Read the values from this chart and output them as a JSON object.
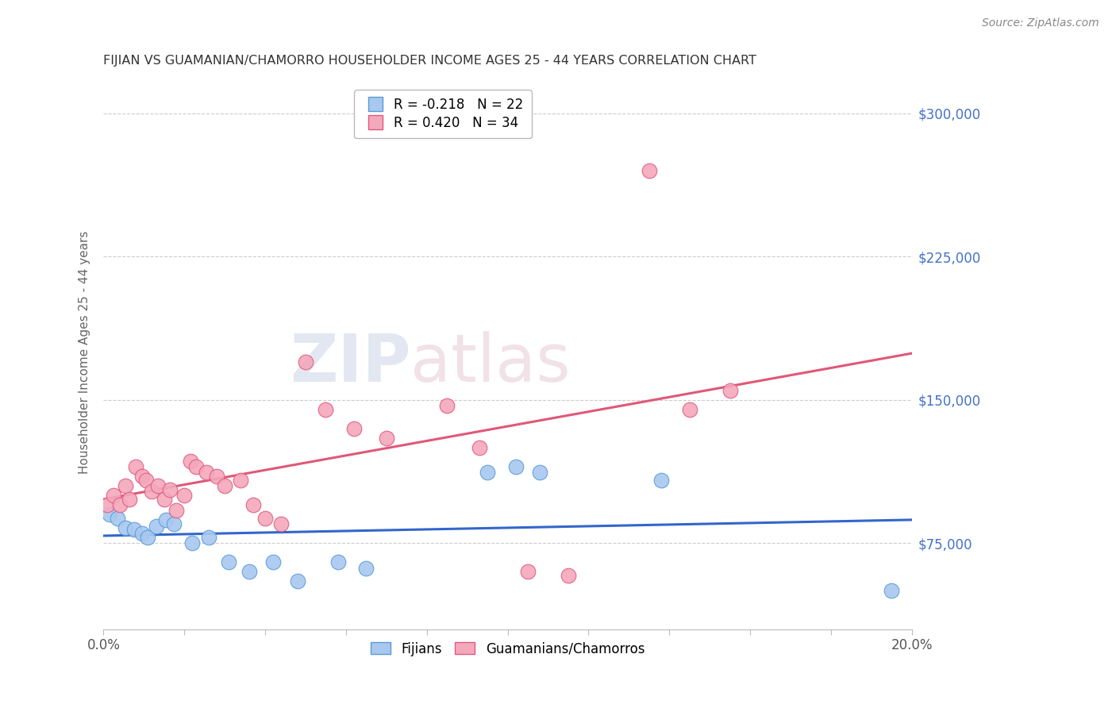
{
  "title": "FIJIAN VS GUAMANIAN/CHAMORRO HOUSEHOLDER INCOME AGES 25 - 44 YEARS CORRELATION CHART",
  "source": "Source: ZipAtlas.com",
  "ylabel": "Householder Income Ages 25 - 44 years",
  "yticks": [
    75000,
    150000,
    225000,
    300000
  ],
  "ytick_labels": [
    "$75,000",
    "$150,000",
    "$225,000",
    "$300,000"
  ],
  "ylim": [
    30000,
    320000
  ],
  "xlim": [
    0.0,
    20.0
  ],
  "fijian_color": "#A8C8F0",
  "fijian_edge": "#5B9BD5",
  "chamorro_color": "#F4A8BC",
  "chamorro_edge": "#E05A80",
  "fijian_line_color": "#3366CC",
  "chamorro_line_color": "#E05878",
  "chamorro_dash_color": "#E8A0B0",
  "fijian_R": -0.218,
  "fijian_N": 22,
  "chamorro_R": 0.42,
  "chamorro_N": 34,
  "fijian_x": [
    0.15,
    0.35,
    0.55,
    0.75,
    0.95,
    1.1,
    1.3,
    1.55,
    1.75,
    2.2,
    2.6,
    3.1,
    3.6,
    4.2,
    4.8,
    5.8,
    6.5,
    9.5,
    10.2,
    10.8,
    13.8,
    19.5
  ],
  "fijian_y": [
    90000,
    88000,
    83000,
    82000,
    80000,
    78000,
    84000,
    87000,
    85000,
    75000,
    78000,
    65000,
    60000,
    65000,
    55000,
    65000,
    62000,
    112000,
    115000,
    112000,
    108000,
    50000
  ],
  "chamorro_x": [
    0.1,
    0.25,
    0.4,
    0.55,
    0.65,
    0.8,
    0.95,
    1.05,
    1.2,
    1.35,
    1.5,
    1.65,
    1.8,
    2.0,
    2.15,
    2.3,
    2.55,
    2.8,
    3.0,
    3.4,
    3.7,
    4.0,
    4.4,
    5.0,
    5.5,
    6.2,
    7.0,
    8.5,
    9.3,
    10.5,
    11.5,
    13.5,
    14.5,
    15.5
  ],
  "chamorro_y": [
    95000,
    100000,
    95000,
    105000,
    98000,
    115000,
    110000,
    108000,
    102000,
    105000,
    98000,
    103000,
    92000,
    100000,
    118000,
    115000,
    112000,
    110000,
    105000,
    108000,
    95000,
    88000,
    85000,
    170000,
    145000,
    135000,
    130000,
    147000,
    125000,
    60000,
    58000,
    270000,
    145000,
    155000
  ],
  "background_color": "#FFFFFF",
  "grid_color": "#CCCCCC",
  "title_color": "#333333",
  "axis_label_color": "#666666",
  "ytick_color": "#4472C4",
  "legend_fijian_label": "Fijians",
  "legend_chamorro_label": "Guamanians/Chamorros"
}
